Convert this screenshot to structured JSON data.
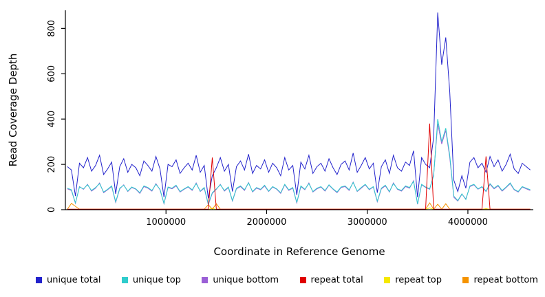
{
  "chart_data": {
    "type": "line",
    "title": "",
    "xlabel": "Coordinate in Reference Genome",
    "ylabel": "Read Coverage Depth",
    "xlim": [
      0,
      4650000
    ],
    "ylim": [
      0,
      880
    ],
    "x_ticks": [
      1000000,
      2000000,
      3000000,
      4000000
    ],
    "y_ticks": [
      0,
      200,
      400,
      600,
      800
    ],
    "grid": false,
    "legend_position": "bottom",
    "x_start": 20000,
    "x_step": 40000,
    "draw_order": [
      "repeat top",
      "repeat bottom",
      "unique bottom",
      "unique top",
      "unique total",
      "repeat total"
    ],
    "series": [
      {
        "name": "unique total",
        "color": "#2222cc",
        "values": [
          190,
          175,
          60,
          205,
          185,
          230,
          170,
          195,
          240,
          155,
          180,
          210,
          70,
          190,
          225,
          165,
          200,
          185,
          150,
          215,
          195,
          170,
          235,
          180,
          55,
          200,
          190,
          220,
          160,
          185,
          205,
          175,
          240,
          165,
          195,
          50,
          150,
          185,
          230,
          170,
          200,
          80,
          190,
          215,
          175,
          245,
          160,
          195,
          180,
          220,
          165,
          205,
          185,
          150,
          230,
          175,
          195,
          65,
          210,
          180,
          240,
          160,
          190,
          205,
          170,
          225,
          185,
          155,
          200,
          215,
          175,
          250,
          165,
          195,
          230,
          180,
          205,
          75,
          190,
          220,
          160,
          240,
          185,
          170,
          210,
          195,
          260,
          55,
          230,
          200,
          185,
          320,
          870,
          640,
          760,
          520,
          130,
          80,
          150,
          95,
          210,
          230,
          185,
          205,
          165,
          235,
          190,
          220,
          170,
          200,
          245,
          180,
          160,
          205,
          190,
          175
        ]
      },
      {
        "name": "unique top",
        "color": "#2fcccc",
        "values": [
          95,
          88,
          30,
          100,
          92,
          110,
          85,
          98,
          115,
          78,
          90,
          105,
          35,
          95,
          108,
          82,
          100,
          92,
          75,
          105,
          98,
          85,
          112,
          90,
          28,
          100,
          95,
          108,
          80,
          92,
          102,
          88,
          115,
          82,
          98,
          25,
          75,
          92,
          110,
          85,
          100,
          40,
          95,
          105,
          88,
          118,
          80,
          98,
          90,
          108,
          82,
          102,
          92,
          75,
          112,
          88,
          98,
          32,
          105,
          90,
          115,
          80,
          95,
          102,
          85,
          110,
          92,
          78,
          100,
          105,
          88,
          120,
          82,
          98,
          112,
          90,
          102,
          38,
          95,
          108,
          80,
          115,
          92,
          85,
          105,
          98,
          125,
          26,
          112,
          100,
          92,
          150,
          400,
          300,
          360,
          240,
          60,
          40,
          70,
          45,
          105,
          112,
          92,
          102,
          82,
          115,
          95,
          108,
          85,
          100,
          118,
          90,
          80,
          102,
          95,
          88
        ]
      },
      {
        "name": "unique bottom",
        "color": "#9a5fd6",
        "values": [
          92,
          85,
          28,
          102,
          90,
          112,
          82,
          95,
          118,
          75,
          88,
          102,
          32,
          92,
          110,
          80,
          98,
          90,
          72,
          102,
          95,
          82,
          115,
          88,
          26,
          98,
          92,
          105,
          78,
          90,
          100,
          85,
          118,
          80,
          95,
          22,
          72,
          90,
          112,
          82,
          98,
          38,
          92,
          102,
          85,
          120,
          78,
          95,
          88,
          105,
          80,
          100,
          90,
          72,
          110,
          85,
          95,
          30,
          102,
          88,
          118,
          78,
          92,
          100,
          82,
          108,
          90,
          75,
          98,
          102,
          85,
          122,
          80,
          95,
          110,
          88,
          100,
          35,
          92,
          105,
          78,
          118,
          90,
          82,
          102,
          95,
          128,
          24,
          110,
          98,
          90,
          155,
          380,
          290,
          350,
          230,
          55,
          38,
          68,
          48,
          102,
          110,
          90,
          100,
          80,
          112,
          92,
          105,
          82,
          98,
          115,
          88,
          78,
          100,
          92,
          85
        ]
      },
      {
        "name": "repeat total",
        "color": "#e00000",
        "values": [
          2,
          2,
          2,
          2,
          2,
          2,
          2,
          2,
          2,
          2,
          2,
          2,
          2,
          2,
          2,
          2,
          2,
          2,
          2,
          2,
          2,
          2,
          2,
          2,
          2,
          2,
          2,
          2,
          2,
          2,
          2,
          2,
          2,
          2,
          2,
          2,
          230,
          2,
          2,
          2,
          2,
          2,
          2,
          2,
          2,
          2,
          2,
          2,
          2,
          2,
          2,
          2,
          2,
          2,
          2,
          2,
          2,
          2,
          2,
          2,
          2,
          2,
          2,
          2,
          2,
          2,
          2,
          2,
          2,
          2,
          2,
          2,
          2,
          2,
          2,
          2,
          2,
          2,
          2,
          2,
          2,
          2,
          2,
          2,
          2,
          2,
          2,
          2,
          2,
          2,
          380,
          2,
          2,
          2,
          2,
          2,
          2,
          2,
          2,
          2,
          2,
          2,
          2,
          2,
          235,
          2,
          2,
          2,
          2,
          2,
          2,
          2,
          2,
          2,
          2,
          2
        ]
      },
      {
        "name": "repeat top",
        "color": "#f5e800",
        "values": [
          1,
          1,
          1,
          1,
          1,
          1,
          1,
          1,
          1,
          1,
          1,
          1,
          1,
          1,
          1,
          1,
          1,
          1,
          1,
          1,
          1,
          1,
          1,
          1,
          1,
          1,
          1,
          1,
          1,
          1,
          1,
          1,
          1,
          1,
          1,
          1,
          6,
          1,
          1,
          1,
          1,
          1,
          1,
          1,
          1,
          1,
          1,
          1,
          1,
          1,
          1,
          1,
          1,
          1,
          1,
          1,
          1,
          1,
          1,
          1,
          1,
          1,
          1,
          1,
          1,
          1,
          1,
          1,
          1,
          1,
          1,
          1,
          1,
          1,
          1,
          1,
          1,
          1,
          1,
          1,
          1,
          1,
          1,
          1,
          1,
          1,
          1,
          1,
          1,
          1,
          8,
          1,
          1,
          1,
          1,
          1,
          1,
          1,
          1,
          1,
          1,
          1,
          1,
          1,
          5,
          1,
          1,
          1,
          1,
          1,
          1,
          1,
          1,
          1,
          1,
          1
        ]
      },
      {
        "name": "repeat bottom",
        "color": "#f59300",
        "values": [
          2,
          28,
          15,
          2,
          2,
          2,
          2,
          2,
          2,
          2,
          2,
          2,
          2,
          2,
          2,
          2,
          2,
          2,
          2,
          2,
          2,
          2,
          2,
          2,
          2,
          2,
          2,
          2,
          2,
          2,
          2,
          2,
          2,
          2,
          2,
          22,
          2,
          26,
          2,
          2,
          2,
          2,
          2,
          2,
          2,
          2,
          2,
          2,
          2,
          2,
          2,
          2,
          2,
          2,
          2,
          2,
          2,
          2,
          2,
          2,
          2,
          2,
          2,
          2,
          2,
          2,
          2,
          2,
          2,
          2,
          2,
          2,
          2,
          2,
          2,
          2,
          2,
          2,
          2,
          2,
          2,
          2,
          2,
          2,
          2,
          2,
          2,
          2,
          2,
          2,
          30,
          2,
          24,
          2,
          26,
          2,
          2,
          2,
          2,
          2,
          2,
          2,
          2,
          2,
          2,
          2,
          2,
          2,
          2,
          2,
          2,
          2,
          2,
          2,
          2,
          2
        ]
      }
    ]
  }
}
